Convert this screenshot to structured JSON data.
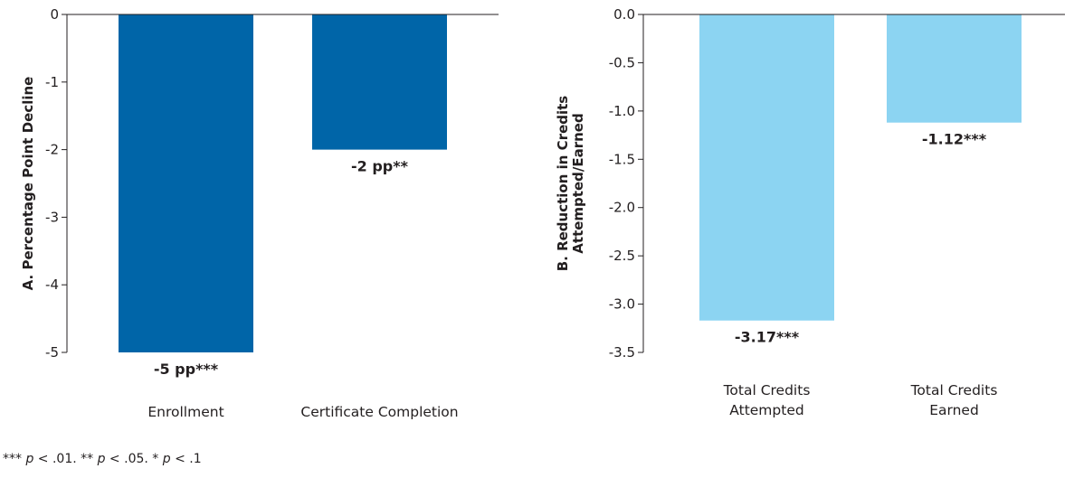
{
  "colors": {
    "panel_a_bar": "#0065a8",
    "panel_b_bar": "#8cd4f2",
    "axis": "#231f20",
    "text": "#231f20"
  },
  "chart_data": [
    {
      "type": "bar",
      "ylabel": "A. Percentage Point Decline",
      "categories": [
        "Enrollment",
        "Certificate Completion"
      ],
      "values": [
        -5,
        -2
      ],
      "data_labels": [
        "-5 pp***",
        "-2 pp**"
      ],
      "yticks": [
        "0",
        "-1",
        "-2",
        "-3",
        "-4",
        "-5"
      ],
      "ylim": [
        -5,
        0
      ],
      "grid": false
    },
    {
      "type": "bar",
      "ylabel": "B. Reduction in Credits Attempted/Earned",
      "ylabel_lines": [
        "B. Reduction in Credits",
        "Attempted/Earned"
      ],
      "categories": [
        "Total Credits Attempted",
        "Total Credits Earned"
      ],
      "category_lines": [
        [
          "Total Credits",
          "Attempted"
        ],
        [
          "Total Credits",
          "Earned"
        ]
      ],
      "values": [
        -3.17,
        -1.12
      ],
      "data_labels": [
        "-3.17***",
        "-1.12***"
      ],
      "yticks": [
        "0.0",
        "-0.5",
        "-1.0",
        "-1.5",
        "-2.0",
        "-2.5",
        "-3.0",
        "-3.5"
      ],
      "ylim": [
        -3.5,
        0
      ],
      "grid": false
    }
  ],
  "footnote": {
    "parts": [
      {
        "text": "*** ",
        "italic": false
      },
      {
        "text": "p",
        "italic": true
      },
      {
        "text": " < .01. ** ",
        "italic": false
      },
      {
        "text": "p",
        "italic": true
      },
      {
        "text": " < .05. * ",
        "italic": false
      },
      {
        "text": "p",
        "italic": true
      },
      {
        "text": " < .1",
        "italic": false
      }
    ]
  }
}
